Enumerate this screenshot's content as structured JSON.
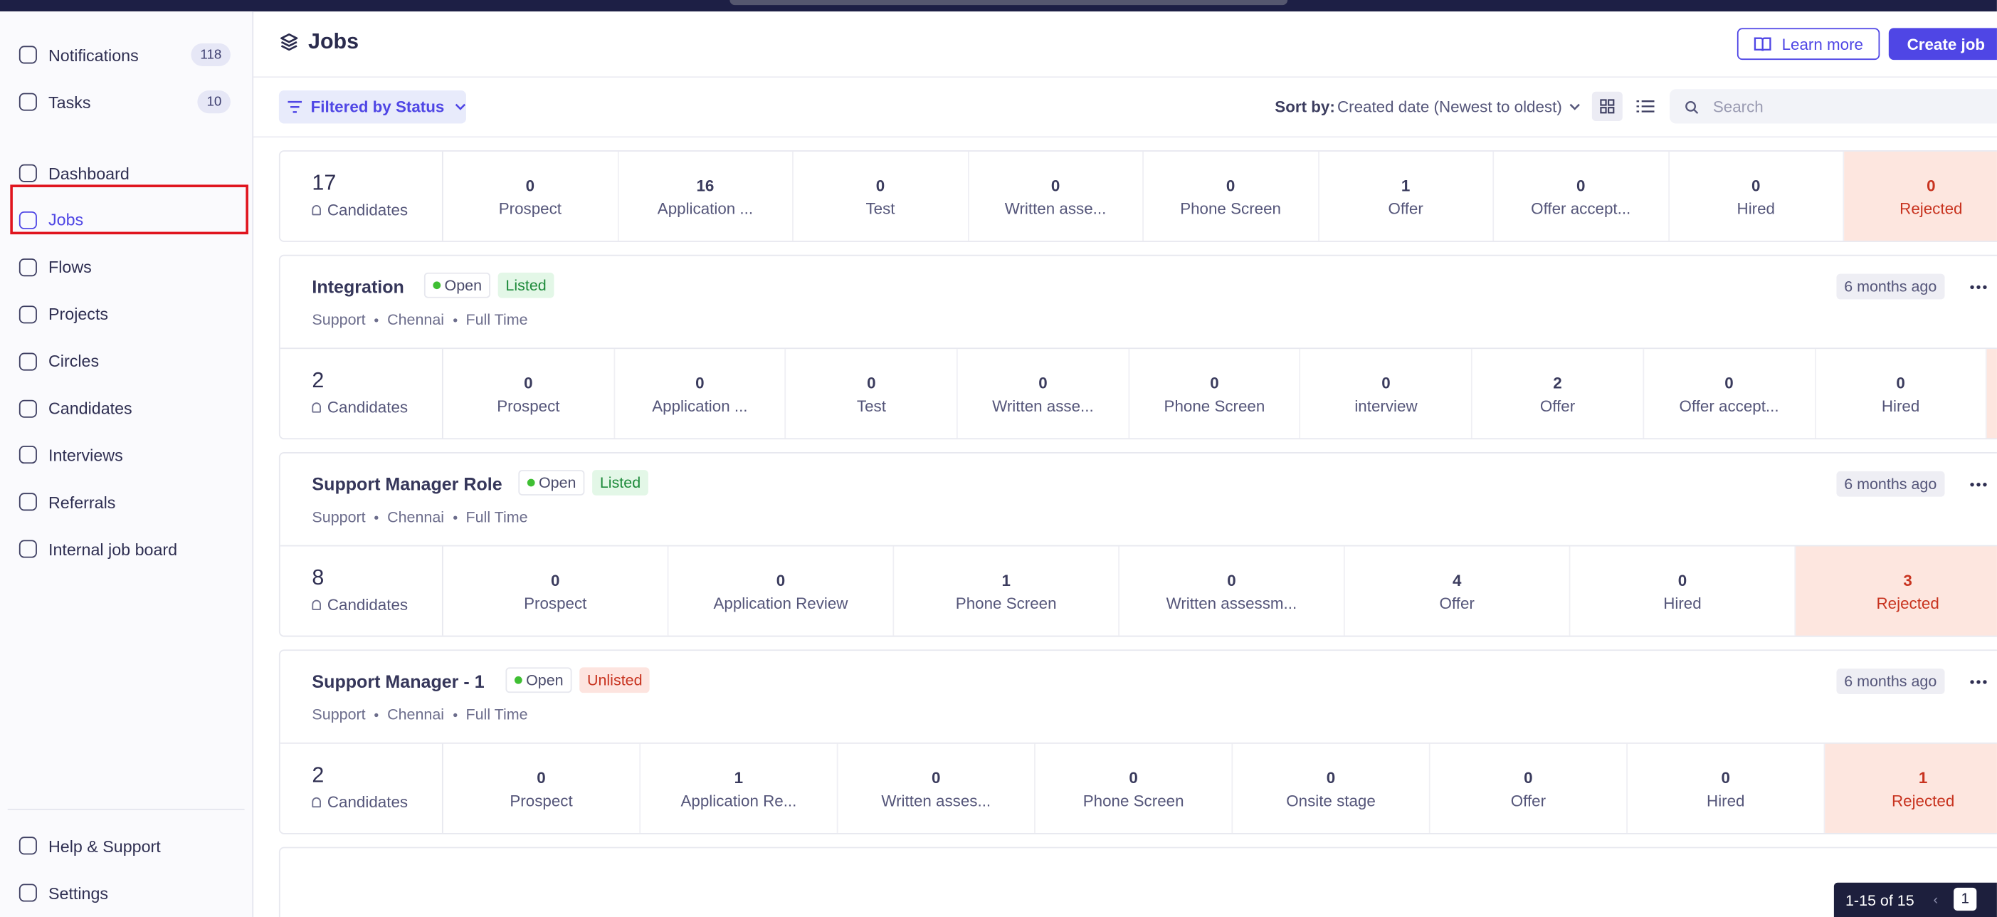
{
  "sidebar": {
    "top": [
      {
        "label": "Notifications",
        "count": 118
      },
      {
        "label": "Tasks",
        "count": 10
      }
    ],
    "nav": [
      "Dashboard",
      "Jobs",
      "Flows",
      "Projects",
      "Circles",
      "Candidates",
      "Interviews",
      "Referrals",
      "Internal job board"
    ],
    "bottom": [
      "Help & Support",
      "Settings"
    ]
  },
  "header": {
    "title": "Jobs",
    "learn_more": "Learn more",
    "create_job": "Create job"
  },
  "toolbar": {
    "filter": "Filtered by Status",
    "sort_label": "Sort by:",
    "sort_value": "Created date (Newest to oldest)",
    "search_placeholder": "Search"
  },
  "jobs": [
    {
      "total": 17,
      "candidates_label": "Candidates",
      "stages": [
        {
          "count": 0,
          "label": "Prospect"
        },
        {
          "count": 16,
          "label": "Application ..."
        },
        {
          "count": 0,
          "label": "Test"
        },
        {
          "count": 0,
          "label": "Written asse..."
        },
        {
          "count": 0,
          "label": "Phone Screen"
        },
        {
          "count": 1,
          "label": "Offer"
        },
        {
          "count": 0,
          "label": "Offer accept..."
        },
        {
          "count": 0,
          "label": "Hired"
        },
        {
          "count": 0,
          "label": "Rejected"
        }
      ]
    },
    {
      "title": "Integration",
      "status": "Open",
      "listing": "Listed",
      "department": "Support",
      "location": "Chennai",
      "employment": "Full Time",
      "age": "6 months ago",
      "total": 2,
      "candidates_label": "Candidates",
      "stages": [
        {
          "count": 0,
          "label": "Prospect"
        },
        {
          "count": 0,
          "label": "Application ..."
        },
        {
          "count": 0,
          "label": "Test"
        },
        {
          "count": 0,
          "label": "Written asse..."
        },
        {
          "count": 0,
          "label": "Phone Screen"
        },
        {
          "count": 0,
          "label": "interview"
        },
        {
          "count": 2,
          "label": "Offer"
        },
        {
          "count": 0,
          "label": "Offer accept..."
        },
        {
          "count": 0,
          "label": "Hired"
        }
      ]
    },
    {
      "title": "Support Manager Role",
      "status": "Open",
      "listing": "Listed",
      "department": "Support",
      "location": "Chennai",
      "employment": "Full Time",
      "age": "6 months ago",
      "total": 8,
      "candidates_label": "Candidates",
      "stages": [
        {
          "count": 0,
          "label": "Prospect"
        },
        {
          "count": 0,
          "label": "Application Review"
        },
        {
          "count": 1,
          "label": "Phone Screen"
        },
        {
          "count": 0,
          "label": "Written assessm..."
        },
        {
          "count": 4,
          "label": "Offer"
        },
        {
          "count": 0,
          "label": "Hired"
        },
        {
          "count": 3,
          "label": "Rejected"
        }
      ]
    },
    {
      "title": "Support Manager - 1",
      "status": "Open",
      "listing": "Unlisted",
      "department": "Support",
      "location": "Chennai",
      "employment": "Full Time",
      "age": "6 months ago",
      "total": 2,
      "candidates_label": "Candidates",
      "stages": [
        {
          "count": 0,
          "label": "Prospect"
        },
        {
          "count": 1,
          "label": "Application Re..."
        },
        {
          "count": 0,
          "label": "Written asses..."
        },
        {
          "count": 0,
          "label": "Phone Screen"
        },
        {
          "count": 0,
          "label": "Onsite stage"
        },
        {
          "count": 0,
          "label": "Offer"
        },
        {
          "count": 0,
          "label": "Hired"
        },
        {
          "count": 1,
          "label": "Rejected"
        }
      ]
    }
  ],
  "pagination": {
    "range": "1-15 of 15",
    "page": 1
  }
}
